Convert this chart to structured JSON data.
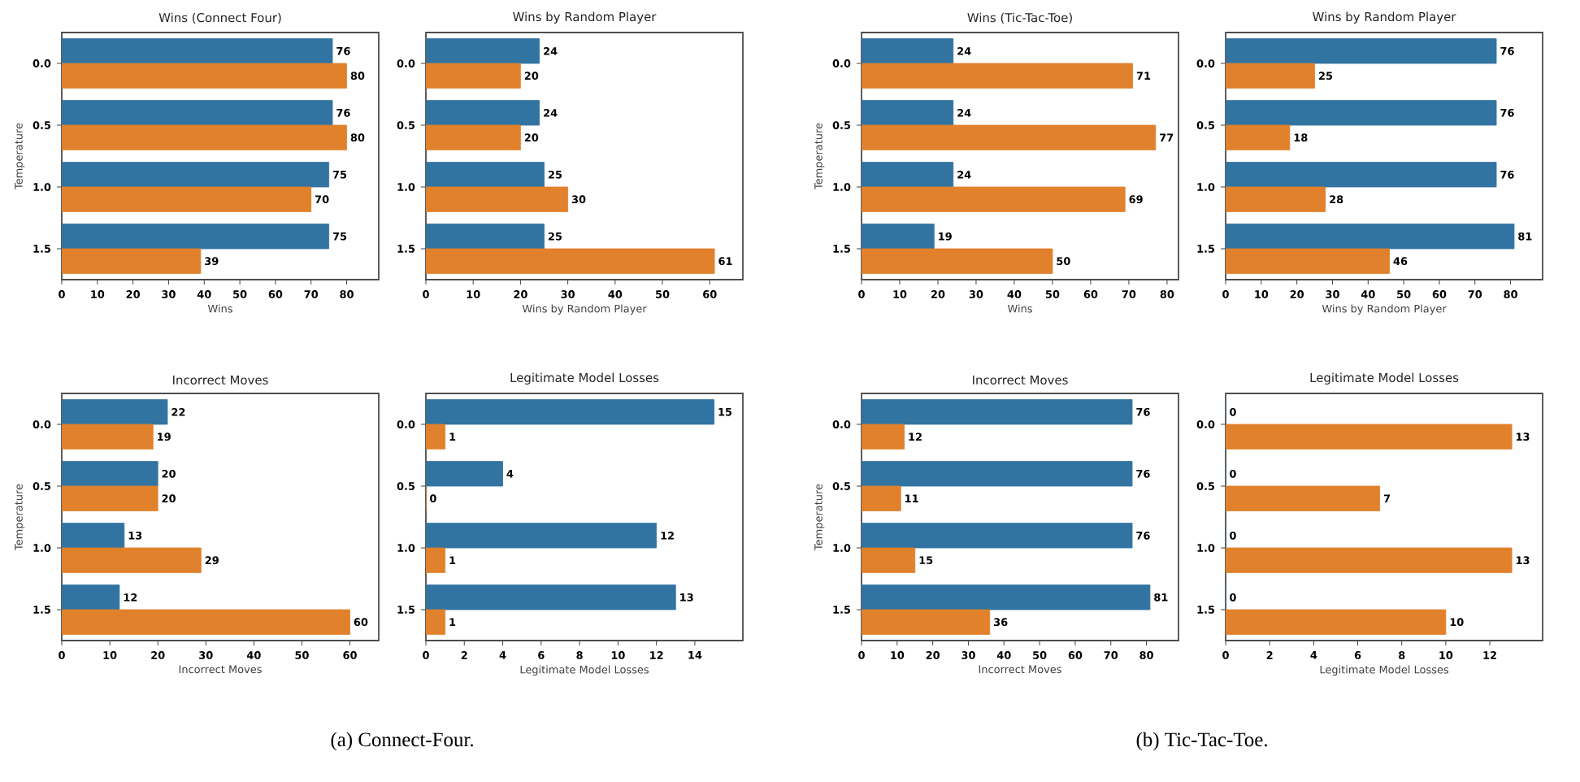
{
  "chart_data": [
    {
      "type": "bar",
      "orientation": "horizontal",
      "title": "Wins (Connect Four)",
      "xlabel": "Wins",
      "ylabel": "Temperature",
      "categories": [
        "0.0",
        "0.5",
        "1.0",
        "1.5"
      ],
      "series": [
        {
          "color": "#3274a1",
          "values": [
            76,
            76,
            75,
            75
          ]
        },
        {
          "color": "#e1812c",
          "values": [
            80,
            80,
            70,
            39
          ]
        }
      ],
      "xlim": [
        0,
        89
      ],
      "xticks": [
        0,
        10,
        20,
        30,
        40,
        50,
        60,
        70,
        80
      ],
      "data_labels": true
    },
    {
      "type": "bar",
      "orientation": "horizontal",
      "title": "Wins by Random Player",
      "xlabel": "Wins by Random Player",
      "categories": [
        "0.0",
        "0.5",
        "1.0",
        "1.5"
      ],
      "series": [
        {
          "color": "#3274a1",
          "values": [
            24,
            24,
            25,
            25
          ]
        },
        {
          "color": "#e1812c",
          "values": [
            20,
            20,
            30,
            61
          ]
        }
      ],
      "xlim": [
        0,
        67
      ],
      "xticks": [
        0,
        10,
        20,
        30,
        40,
        50,
        60
      ],
      "data_labels": true
    },
    {
      "type": "bar",
      "orientation": "horizontal",
      "title": "Incorrect Moves",
      "xlabel": "Incorrect Moves",
      "ylabel": "Temperature",
      "categories": [
        "0.0",
        "0.5",
        "1.0",
        "1.5"
      ],
      "series": [
        {
          "color": "#3274a1",
          "values": [
            22,
            20,
            13,
            12
          ]
        },
        {
          "color": "#e1812c",
          "values": [
            19,
            20,
            29,
            60
          ]
        }
      ],
      "xlim": [
        0,
        66
      ],
      "xticks": [
        0,
        10,
        20,
        30,
        40,
        50,
        60
      ],
      "data_labels": true,
      "annotations": [
        "(a) Connect-Four."
      ]
    },
    {
      "type": "bar",
      "orientation": "horizontal",
      "title": "Legitimate Model Losses",
      "xlabel": "Legitimate Model Losses",
      "categories": [
        "0.0",
        "0.5",
        "1.0",
        "1.5"
      ],
      "series": [
        {
          "color": "#3274a1",
          "values": [
            15,
            4,
            12,
            13
          ]
        },
        {
          "color": "#e1812c",
          "values": [
            1,
            0,
            1,
            1
          ]
        }
      ],
      "xlim": [
        0,
        16.5
      ],
      "xticks": [
        0,
        2,
        4,
        6,
        8,
        10,
        12,
        14
      ],
      "data_labels": true
    },
    {
      "type": "bar",
      "orientation": "horizontal",
      "title": "Wins (Tic-Tac-Toe)",
      "xlabel": "Wins",
      "ylabel": "Temperature",
      "categories": [
        "0.0",
        "0.5",
        "1.0",
        "1.5"
      ],
      "series": [
        {
          "color": "#3274a1",
          "values": [
            24,
            24,
            24,
            19
          ]
        },
        {
          "color": "#e1812c",
          "values": [
            71,
            77,
            69,
            50
          ]
        }
      ],
      "xlim": [
        0,
        83
      ],
      "xticks": [
        0,
        10,
        20,
        30,
        40,
        50,
        60,
        70,
        80
      ],
      "data_labels": true
    },
    {
      "type": "bar",
      "orientation": "horizontal",
      "title": "Wins by Random Player",
      "xlabel": "Wins by Random Player",
      "categories": [
        "0.0",
        "0.5",
        "1.0",
        "1.5"
      ],
      "series": [
        {
          "color": "#3274a1",
          "values": [
            76,
            76,
            76,
            81
          ]
        },
        {
          "color": "#e1812c",
          "values": [
            25,
            18,
            28,
            46
          ]
        }
      ],
      "xlim": [
        0,
        89
      ],
      "xticks": [
        0,
        10,
        20,
        30,
        40,
        50,
        60,
        70,
        80
      ],
      "data_labels": true
    },
    {
      "type": "bar",
      "orientation": "horizontal",
      "title": "Incorrect Moves",
      "xlabel": "Incorrect Moves",
      "ylabel": "Temperature",
      "categories": [
        "0.0",
        "0.5",
        "1.0",
        "1.5"
      ],
      "series": [
        {
          "color": "#3274a1",
          "values": [
            76,
            76,
            76,
            81
          ]
        },
        {
          "color": "#e1812c",
          "values": [
            12,
            11,
            15,
            36
          ]
        }
      ],
      "xlim": [
        0,
        89
      ],
      "xticks": [
        0,
        10,
        20,
        30,
        40,
        50,
        60,
        70,
        80
      ],
      "data_labels": true,
      "annotations": [
        "(b) Tic-Tac-Toe."
      ]
    },
    {
      "type": "bar",
      "orientation": "horizontal",
      "title": "Legitimate Model Losses",
      "xlabel": "Legitimate Model Losses",
      "categories": [
        "0.0",
        "0.5",
        "1.0",
        "1.5"
      ],
      "series": [
        {
          "color": "#3274a1",
          "values": [
            0,
            0,
            0,
            0
          ]
        },
        {
          "color": "#e1812c",
          "values": [
            13,
            7,
            13,
            10
          ]
        }
      ],
      "xlim": [
        0,
        14.4
      ],
      "xticks": [
        0,
        2,
        4,
        6,
        8,
        10,
        12
      ],
      "data_labels": true
    }
  ]
}
